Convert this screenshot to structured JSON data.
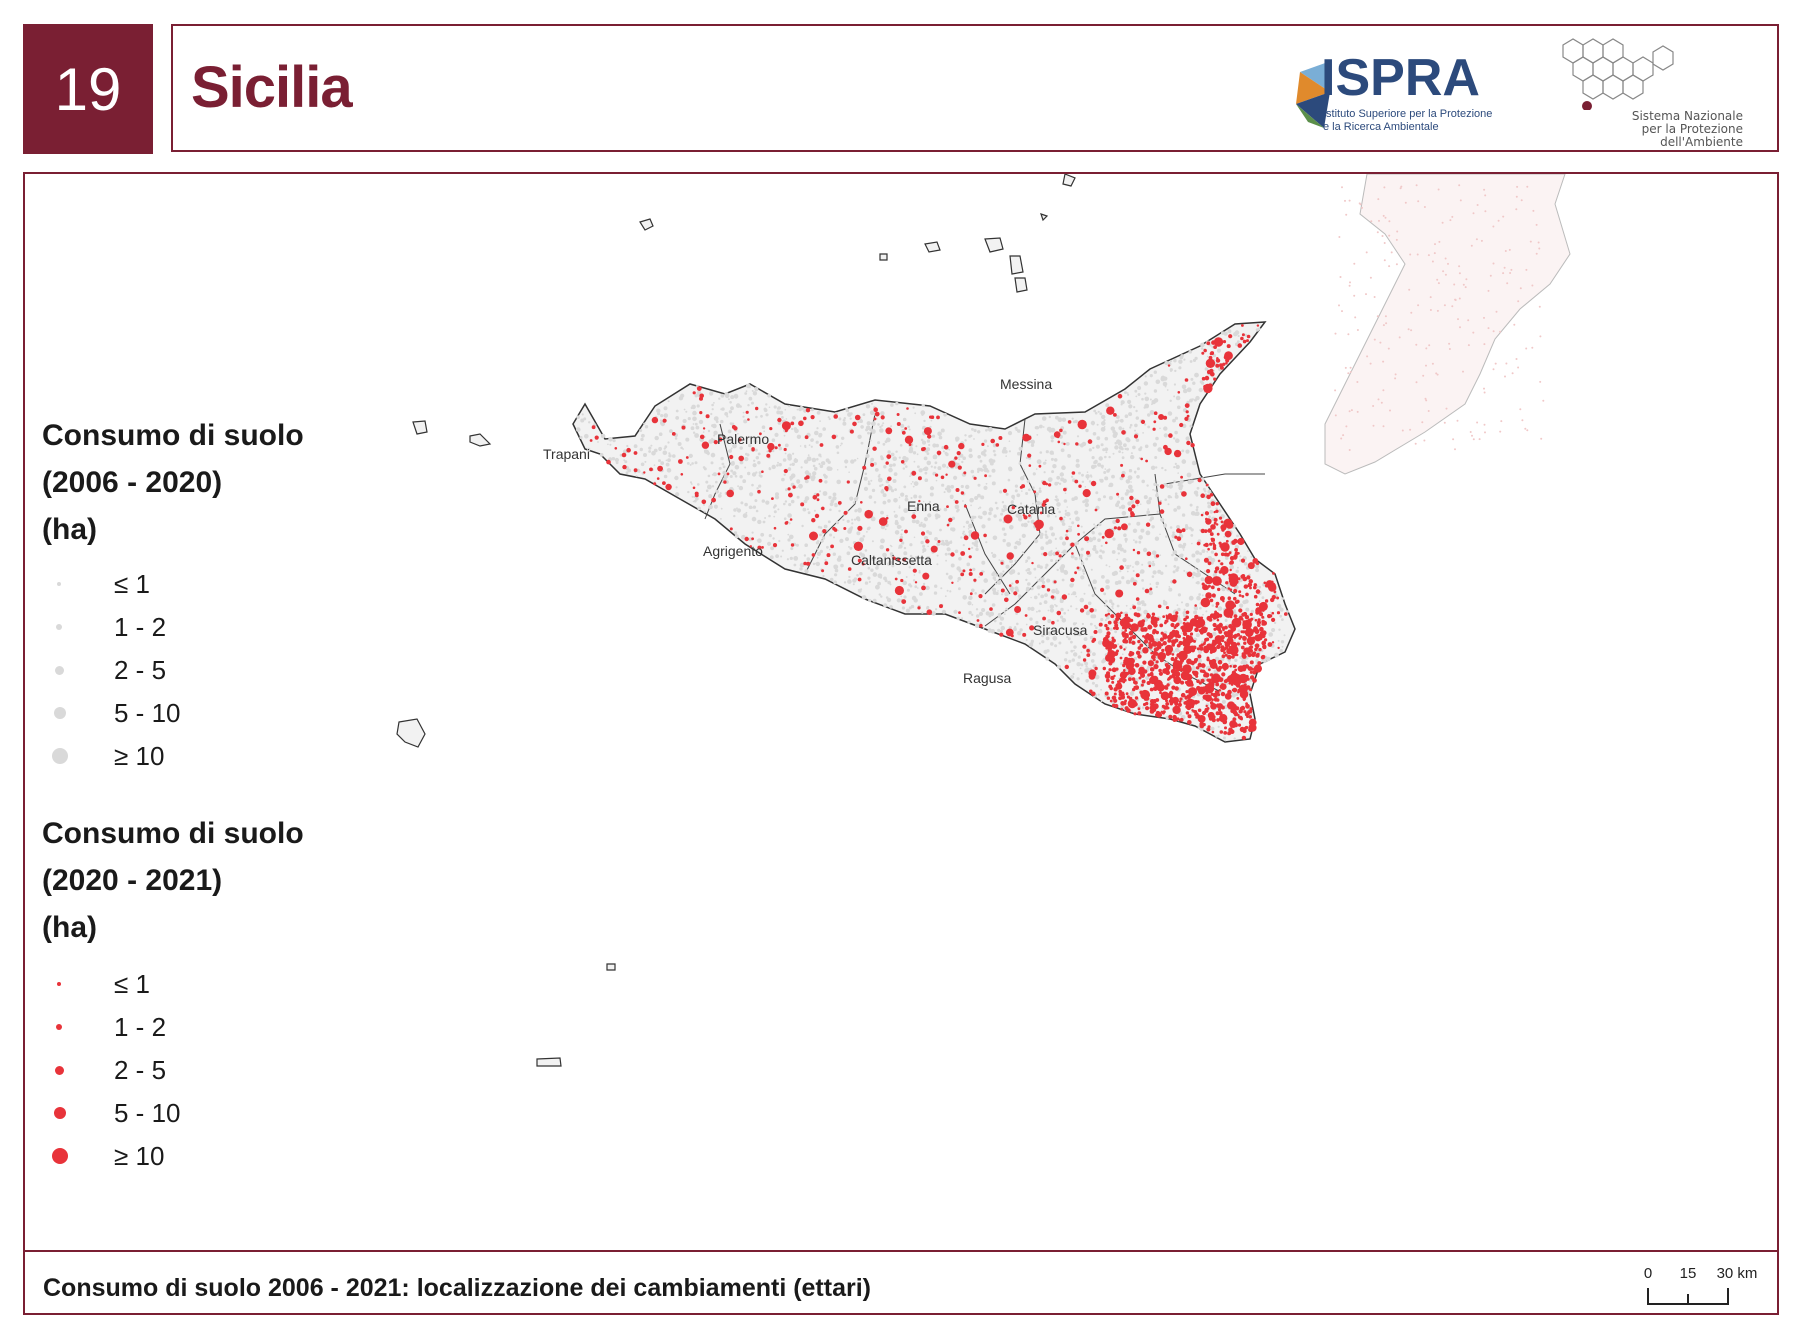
{
  "header": {
    "region_number": "19",
    "region_name": "Sicilia",
    "ispra_name": "ISPRA",
    "ispra_subtitle": "Istituto Superiore per la Protezione e la Ricerca Ambientale",
    "snpa_line1": "Sistema Nazionale",
    "snpa_line2": "per la Protezione",
    "snpa_line3": "dell'Ambiente"
  },
  "legend": {
    "group1": {
      "title_line1": "Consumo di suolo",
      "title_line2": "(2006 - 2020)",
      "title_line3": "(ha)",
      "color": "#d9d9d9",
      "classes": [
        "≤ 1",
        "1 - 2",
        "2 - 5",
        "5 - 10",
        "≥ 10"
      ]
    },
    "group2": {
      "title_line1": "Consumo di suolo",
      "title_line2": "(2020 - 2021)",
      "title_line3": "(ha)",
      "color": "#e8333a",
      "classes": [
        "≤ 1",
        "1 - 2",
        "2 - 5",
        "5 - 10",
        "≥ 10"
      ]
    }
  },
  "map": {
    "provinces": [
      "Palermo",
      "Trapani",
      "Messina",
      "Agrigento",
      "Enna",
      "Catania",
      "Caltanissetta",
      "Siracusa",
      "Ragusa"
    ],
    "land_color": "#f2f2f2",
    "border_color": "#333333"
  },
  "footer": {
    "caption": "Consumo di suolo 2006 - 2021: localizzazione dei cambiamenti (ettari)"
  },
  "scale": {
    "labels": [
      "0",
      "15",
      "30 km"
    ]
  },
  "colors": {
    "accent": "#7a1f33",
    "ispra_blue": "#2c4a7c"
  }
}
